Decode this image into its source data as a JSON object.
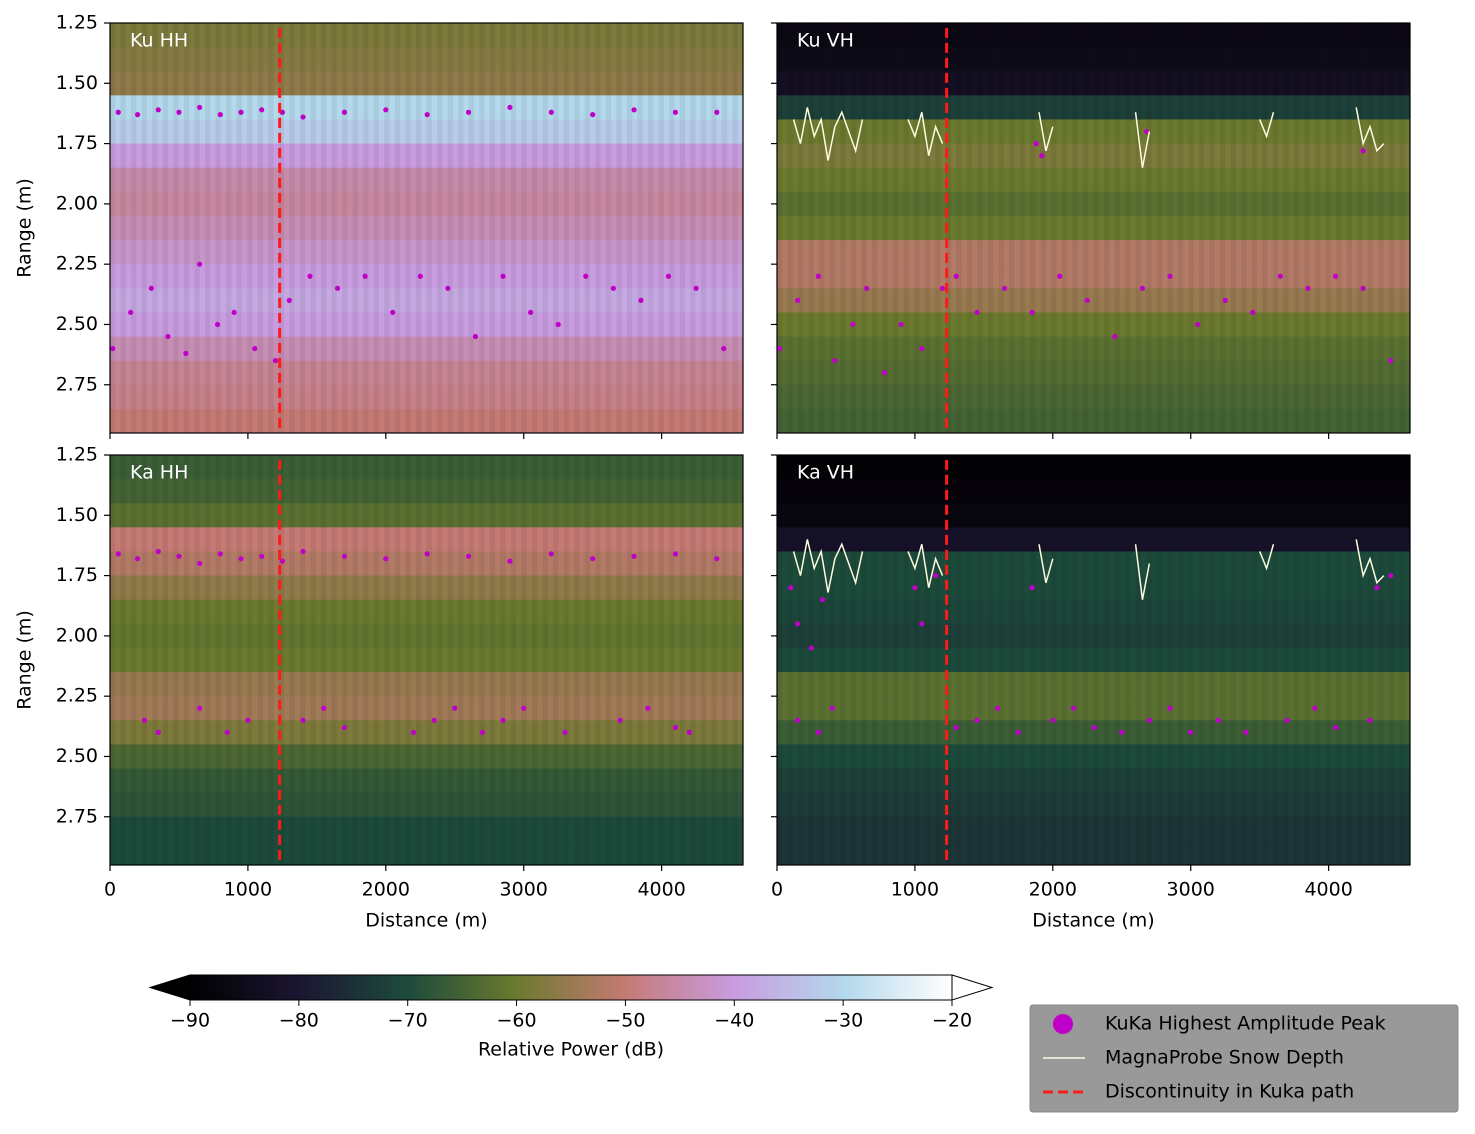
{
  "chart_data": [
    {
      "type": "radargram",
      "title": "Ku HH",
      "y_label": "Range (m)",
      "xlim": [
        0,
        4590
      ],
      "ylim": [
        1.25,
        2.95
      ],
      "xticks": [
        0,
        1000,
        2000,
        3000,
        4000
      ],
      "yticks": [
        1.25,
        {
          "value": 1.5,
          "label": "1.50"
        },
        1.75,
        {
          "value": 2.0,
          "label": "2.00"
        },
        2.25,
        {
          "value": 2.5,
          "label": "2.50"
        },
        2.75
      ],
      "power": {
        "ranges": [
          1.3,
          1.4,
          1.5,
          1.6,
          1.7,
          1.8,
          1.9,
          2.0,
          2.1,
          2.2,
          2.3,
          2.4,
          2.5,
          2.6,
          2.7,
          2.8,
          2.9
        ],
        "values": [
          -58,
          -57,
          -56,
          -30,
          -32,
          -40,
          -45,
          -46,
          -44,
          -42,
          -40,
          -38,
          -40,
          -44,
          -47,
          -48,
          -50
        ]
      },
      "series": [
        {
          "name": "KuKa Highest Amplitude Peak",
          "type": "scatter",
          "color": "#c000c8",
          "x": [
            60,
            200,
            350,
            500,
            650,
            800,
            950,
            1100,
            1250,
            1400,
            1700,
            2000,
            2300,
            2600,
            2900,
            3200,
            3500,
            3800,
            4100,
            4400,
            20,
            150,
            300,
            420,
            550,
            650,
            780,
            900,
            1050,
            1200,
            1300,
            1450,
            1650,
            1850,
            2050,
            2250,
            2450,
            2650,
            2850,
            3050,
            3250,
            3450,
            3650,
            3850,
            4050,
            4250,
            4450
          ],
          "values": [
            1.62,
            1.63,
            1.61,
            1.62,
            1.6,
            1.63,
            1.62,
            1.61,
            1.62,
            1.64,
            1.62,
            1.61,
            1.63,
            1.62,
            1.6,
            1.62,
            1.63,
            1.61,
            1.62,
            1.62,
            2.6,
            2.45,
            2.35,
            2.55,
            2.62,
            2.25,
            2.5,
            2.45,
            2.6,
            2.65,
            2.4,
            2.3,
            2.35,
            2.3,
            2.45,
            2.3,
            2.35,
            2.55,
            2.3,
            2.45,
            2.5,
            2.3,
            2.35,
            2.4,
            2.3,
            2.35,
            2.6
          ]
        },
        {
          "name": "Discontinuity in Kuka path",
          "type": "line",
          "dash": true,
          "color": "#ff1a1a",
          "x": [
            1230,
            1230
          ],
          "values": [
            1.27,
            2.95
          ]
        }
      ]
    },
    {
      "type": "radargram",
      "title": "Ku VH",
      "xlim": [
        0,
        4590
      ],
      "ylim": [
        1.25,
        2.95
      ],
      "xticks": [
        0,
        1000,
        2000,
        3000,
        4000
      ],
      "yticks": [
        1.25,
        {
          "value": 1.5,
          "label": "1.50"
        },
        1.75,
        {
          "value": 2.0,
          "label": "2.00"
        },
        2.25,
        {
          "value": 2.5,
          "label": "2.50"
        },
        2.75
      ],
      "power": {
        "ranges": [
          1.3,
          1.4,
          1.5,
          1.6,
          1.7,
          1.8,
          1.9,
          2.0,
          2.1,
          2.2,
          2.3,
          2.4,
          2.5,
          2.6,
          2.7,
          2.8,
          2.9
        ],
        "values": [
          -86,
          -85,
          -83,
          -72,
          -60,
          -58,
          -60,
          -62,
          -60,
          -52,
          -52,
          -55,
          -60,
          -62,
          -63,
          -64,
          -65
        ]
      },
      "series": [
        {
          "name": "KuKa Highest Amplitude Peak",
          "type": "scatter",
          "color": "#c000c8",
          "x": [
            20,
            150,
            300,
            420,
            550,
            650,
            780,
            900,
            1050,
            1200,
            1300,
            1450,
            1650,
            1850,
            2050,
            2250,
            2450,
            2650,
            2850,
            3050,
            3250,
            3450,
            3650,
            3850,
            4050,
            4250,
            4450,
            1880,
            1920,
            2680,
            4250
          ],
          "values": [
            2.6,
            2.4,
            2.3,
            2.65,
            2.5,
            2.35,
            2.7,
            2.5,
            2.6,
            2.35,
            2.3,
            2.45,
            2.35,
            2.45,
            2.3,
            2.4,
            2.55,
            2.35,
            2.3,
            2.5,
            2.4,
            2.45,
            2.3,
            2.35,
            2.3,
            2.35,
            2.65,
            1.75,
            1.8,
            1.7,
            1.78
          ]
        },
        {
          "name": "MagnaProbe Snow Depth",
          "type": "line",
          "color": "#fffde0",
          "x": [
            120,
            170,
            220,
            270,
            320,
            370,
            420,
            470,
            520,
            570,
            620,
            null,
            950,
            1000,
            1050,
            1100,
            1150,
            1200,
            null,
            1900,
            1950,
            2000,
            null,
            2600,
            2650,
            2700,
            null,
            3500,
            3550,
            3600,
            null,
            4200,
            4250,
            4300,
            4350,
            4400
          ],
          "values": [
            1.65,
            1.75,
            1.6,
            1.72,
            1.65,
            1.82,
            1.68,
            1.62,
            1.7,
            1.78,
            1.65,
            null,
            1.65,
            1.72,
            1.62,
            1.8,
            1.68,
            1.75,
            null,
            1.62,
            1.78,
            1.68,
            null,
            1.62,
            1.85,
            1.7,
            null,
            1.65,
            1.72,
            1.62,
            null,
            1.6,
            1.75,
            1.68,
            1.78,
            1.75
          ]
        },
        {
          "name": "Discontinuity in Kuka path",
          "type": "line",
          "dash": true,
          "color": "#ff1a1a",
          "x": [
            1230,
            1230
          ],
          "values": [
            1.27,
            2.95
          ]
        }
      ]
    },
    {
      "type": "radargram",
      "title": "Ka HH",
      "y_label": "Range (m)",
      "x_label": "Distance (m)",
      "xlim": [
        0,
        4590
      ],
      "ylim": [
        1.25,
        2.95
      ],
      "xticks": [
        0,
        1000,
        2000,
        3000,
        4000
      ],
      "yticks": [
        1.25,
        {
          "value": 1.5,
          "label": "1.50"
        },
        1.75,
        {
          "value": 2.0,
          "label": "2.00"
        },
        2.25,
        {
          "value": 2.5,
          "label": "2.50"
        },
        2.75
      ],
      "power": {
        "ranges": [
          1.3,
          1.4,
          1.5,
          1.6,
          1.7,
          1.8,
          1.9,
          2.0,
          2.1,
          2.2,
          2.3,
          2.4,
          2.5,
          2.6,
          2.7,
          2.8,
          2.9
        ],
        "values": [
          -66,
          -65,
          -62,
          -50,
          -52,
          -56,
          -60,
          -61,
          -60,
          -55,
          -54,
          -58,
          -64,
          -67,
          -68,
          -70,
          -70
        ]
      },
      "series": [
        {
          "name": "KuKa Highest Amplitude Peak",
          "type": "scatter",
          "color": "#c000c8",
          "x": [
            60,
            200,
            350,
            500,
            650,
            800,
            950,
            1100,
            1250,
            1400,
            1700,
            2000,
            2300,
            2600,
            2900,
            3200,
            3500,
            3800,
            4100,
            4400,
            250,
            350,
            650,
            850,
            1000,
            1400,
            1550,
            1700,
            2200,
            2350,
            2500,
            2700,
            2850,
            3000,
            3300,
            3700,
            3900,
            4100,
            4200
          ],
          "values": [
            1.66,
            1.68,
            1.65,
            1.67,
            1.7,
            1.66,
            1.68,
            1.67,
            1.69,
            1.65,
            1.67,
            1.68,
            1.66,
            1.67,
            1.69,
            1.66,
            1.68,
            1.67,
            1.66,
            1.68,
            2.35,
            2.4,
            2.3,
            2.4,
            2.35,
            2.35,
            2.3,
            2.38,
            2.4,
            2.35,
            2.3,
            2.4,
            2.35,
            2.3,
            2.4,
            2.35,
            2.3,
            2.38,
            2.4
          ]
        },
        {
          "name": "Discontinuity in Kuka path",
          "type": "line",
          "dash": true,
          "color": "#ff1a1a",
          "x": [
            1230,
            1230
          ],
          "values": [
            1.27,
            2.95
          ]
        }
      ]
    },
    {
      "type": "radargram",
      "title": "Ka VH",
      "x_label": "Distance (m)",
      "xlim": [
        0,
        4590
      ],
      "ylim": [
        1.25,
        2.95
      ],
      "xticks": [
        0,
        1000,
        2000,
        3000,
        4000
      ],
      "yticks": [
        1.25,
        {
          "value": 1.5,
          "label": "1.50"
        },
        1.75,
        {
          "value": 2.0,
          "label": "2.00"
        },
        2.25,
        {
          "value": 2.5,
          "label": "2.50"
        },
        2.75
      ],
      "power": {
        "ranges": [
          1.3,
          1.4,
          1.5,
          1.6,
          1.7,
          1.8,
          1.9,
          2.0,
          2.1,
          2.2,
          2.3,
          2.4,
          2.5,
          2.6,
          2.7,
          2.8,
          2.9
        ],
        "values": [
          -89,
          -88,
          -87,
          -82,
          -70,
          -70,
          -71,
          -72,
          -70,
          -62,
          -62,
          -66,
          -70,
          -72,
          -73,
          -74,
          -74
        ]
      },
      "series": [
        {
          "name": "KuKa Highest Amplitude Peak",
          "type": "scatter",
          "color": "#c000c8",
          "x": [
            100,
            150,
            250,
            330,
            1000,
            1050,
            1150,
            1850,
            4350,
            4450,
            150,
            300,
            400,
            1300,
            1450,
            1600,
            1750,
            2000,
            2150,
            2300,
            2500,
            2700,
            2850,
            3000,
            3200,
            3400,
            3700,
            3900,
            4050,
            4300
          ],
          "values": [
            1.8,
            1.95,
            2.05,
            1.85,
            1.8,
            1.95,
            1.75,
            1.8,
            1.8,
            1.75,
            2.35,
            2.4,
            2.3,
            2.38,
            2.35,
            2.3,
            2.4,
            2.35,
            2.3,
            2.38,
            2.4,
            2.35,
            2.3,
            2.4,
            2.35,
            2.4,
            2.35,
            2.3,
            2.38,
            2.35
          ]
        },
        {
          "name": "MagnaProbe Snow Depth",
          "type": "line",
          "color": "#fffde0",
          "x": [
            120,
            170,
            220,
            270,
            320,
            370,
            420,
            470,
            520,
            570,
            620,
            null,
            950,
            1000,
            1050,
            1100,
            1150,
            1200,
            null,
            1900,
            1950,
            2000,
            null,
            2600,
            2650,
            2700,
            null,
            3500,
            3550,
            3600,
            null,
            4200,
            4250,
            4300,
            4350,
            4400
          ],
          "values": [
            1.65,
            1.75,
            1.6,
            1.72,
            1.65,
            1.82,
            1.68,
            1.62,
            1.7,
            1.78,
            1.65,
            null,
            1.65,
            1.72,
            1.62,
            1.8,
            1.68,
            1.75,
            null,
            1.62,
            1.78,
            1.68,
            null,
            1.62,
            1.85,
            1.7,
            null,
            1.65,
            1.72,
            1.62,
            null,
            1.6,
            1.75,
            1.68,
            1.78,
            1.75
          ]
        },
        {
          "name": "Discontinuity in Kuka path",
          "type": "line",
          "dash": true,
          "color": "#ff1a1a",
          "x": [
            1230,
            1230
          ],
          "values": [
            1.27,
            2.95
          ]
        }
      ]
    },
    {
      "type": "colorbar",
      "label": "Relative Power (dB)",
      "xlim": [
        -90,
        -20
      ],
      "xticks": [
        {
          "value": -90,
          "label": "−90"
        },
        {
          "value": -80,
          "label": "−80"
        },
        {
          "value": -70,
          "label": "−70"
        },
        {
          "value": -60,
          "label": "−60"
        },
        {
          "value": -50,
          "label": "−50"
        },
        {
          "value": -40,
          "label": "−40"
        },
        {
          "value": -30,
          "label": "−30"
        },
        {
          "value": -20,
          "label": "−20"
        }
      ],
      "colors": [
        "#000000",
        "#1c1532",
        "#1d4b3b",
        "#6b7a2e",
        "#c57a74",
        "#c99ce0",
        "#b4d8ec",
        "#ffffff"
      ]
    }
  ]
}
